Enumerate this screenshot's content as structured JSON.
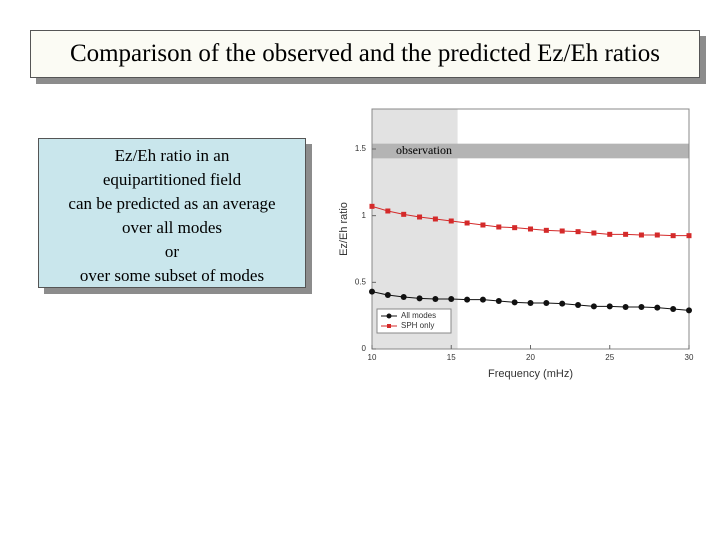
{
  "header": {
    "title": "Comparison of the observed and the predicted Ez/Eh ratios"
  },
  "textbox": {
    "lines": [
      "Ez/Eh ratio in an",
      "equipartitioned field",
      "can be predicted as an average",
      "over all modes",
      "or",
      "over some subset of modes"
    ]
  },
  "chart_data": {
    "type": "line",
    "xlabel": "Frequency (mHz)",
    "ylabel": "Ez/Eh ratio",
    "x": [
      10,
      11,
      12,
      13,
      14,
      15,
      16,
      17,
      18,
      19,
      20,
      21,
      22,
      23,
      24,
      25,
      26,
      27,
      28,
      29,
      30
    ],
    "series": [
      {
        "name": "All modes",
        "color": "#111111",
        "marker": "circle",
        "values": [
          0.43,
          0.405,
          0.39,
          0.38,
          0.375,
          0.375,
          0.37,
          0.37,
          0.36,
          0.35,
          0.345,
          0.345,
          0.34,
          0.33,
          0.32,
          0.32,
          0.315,
          0.315,
          0.31,
          0.3,
          0.29
        ]
      },
      {
        "name": "SPH only",
        "color": "#d42a2a",
        "marker": "square",
        "values": [
          1.07,
          1.035,
          1.01,
          0.99,
          0.975,
          0.96,
          0.945,
          0.93,
          0.915,
          0.91,
          0.9,
          0.89,
          0.885,
          0.88,
          0.87,
          0.86,
          0.86,
          0.855,
          0.855,
          0.85,
          0.85
        ]
      }
    ],
    "xlim": [
      10,
      30
    ],
    "xticks": [
      10,
      15,
      20,
      25,
      30
    ],
    "ylim": [
      0,
      1.8
    ],
    "yticks": [
      0,
      0.5,
      1,
      1.5
    ],
    "shaded_region": {
      "xlim": [
        10,
        15.4
      ],
      "color": "#e2e2e2"
    },
    "observation": {
      "label": "observation",
      "ylim": [
        1.43,
        1.54
      ],
      "color": "#b4b4b4"
    },
    "legend": "lower left"
  }
}
